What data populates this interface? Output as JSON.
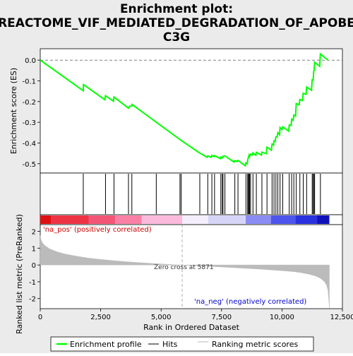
{
  "chart_data": [
    {
      "type": "line",
      "title_line1": "Enrichment plot:",
      "title_line2": "REACTOME_VIF_MEDIATED_DEGRADATION_OF_APOBE",
      "title_line3": "C3G",
      "ylabel": "Enrichment score (ES)",
      "xlim": [
        0,
        12500
      ],
      "ylim": [
        -0.545,
        0.055
      ],
      "yticks": [
        0.0,
        -0.1,
        -0.2,
        -0.3,
        -0.4,
        -0.5
      ],
      "ytick_labels": [
        "0.0",
        "-0.1",
        "-0.2",
        "-0.3",
        "-0.4",
        "-0.5"
      ],
      "series": [
        {
          "name": "Enrichment profile",
          "color": "#00ff00",
          "x": [
            0,
            1780,
            1790,
            2670,
            2700,
            3030,
            3050,
            3650,
            3700,
            3790,
            3800,
            4780,
            4800,
            5780,
            5800,
            6580,
            6600,
            6900,
            6930,
            7070,
            7100,
            7190,
            7210,
            7450,
            7470,
            7530,
            7560,
            7620,
            7640,
            8020,
            8050,
            8160,
            8180,
            8480,
            8510,
            8560,
            8580,
            8610,
            8640,
            8660,
            8700,
            8780,
            8800,
            8920,
            8940,
            9150,
            9170,
            9350,
            9380,
            9560,
            9590,
            9650,
            9670,
            9720,
            9750,
            9800,
            9830,
            9900,
            9920,
            10000,
            10030,
            10280,
            10300,
            10380,
            10400,
            10460,
            10490,
            10560,
            10590,
            10710,
            10740,
            10850,
            10880,
            11000,
            11020,
            11220,
            11250,
            11290,
            11310,
            11330,
            11350,
            11560,
            11590,
            11900
          ],
          "y": [
            0.0,
            -0.148,
            -0.118,
            -0.191,
            -0.172,
            -0.198,
            -0.178,
            -0.232,
            -0.222,
            -0.222,
            -0.214,
            -0.298,
            -0.3,
            -0.383,
            -0.385,
            -0.447,
            -0.448,
            -0.469,
            -0.462,
            -0.469,
            -0.46,
            -0.466,
            -0.461,
            -0.475,
            -0.468,
            -0.472,
            -0.464,
            -0.462,
            -0.462,
            -0.492,
            -0.485,
            -0.489,
            -0.484,
            -0.51,
            -0.496,
            -0.5,
            -0.483,
            -0.47,
            -0.458,
            -0.465,
            -0.454,
            -0.458,
            -0.447,
            -0.459,
            -0.445,
            -0.458,
            -0.444,
            -0.451,
            -0.42,
            -0.435,
            -0.405,
            -0.41,
            -0.39,
            -0.392,
            -0.37,
            -0.37,
            -0.35,
            -0.36,
            -0.325,
            -0.335,
            -0.322,
            -0.343,
            -0.313,
            -0.315,
            -0.285,
            -0.29,
            -0.265,
            -0.27,
            -0.21,
            -0.215,
            -0.19,
            -0.195,
            -0.16,
            -0.165,
            -0.13,
            -0.145,
            -0.095,
            -0.095,
            -0.055,
            -0.05,
            -0.01,
            -0.03,
            0.03,
            0.0
          ]
        }
      ]
    },
    {
      "type": "scatter",
      "name": "hits",
      "legend_label": "Hits",
      "xlim": [
        0,
        12500
      ],
      "positions": [
        1780,
        2700,
        3050,
        3650,
        3790,
        4800,
        5780,
        5830,
        6600,
        6930,
        7100,
        7210,
        7470,
        7530,
        7560,
        7640,
        8050,
        8180,
        8510,
        8580,
        8610,
        8640,
        8660,
        8700,
        8800,
        8940,
        9170,
        9380,
        9590,
        9670,
        9750,
        9830,
        9920,
        10030,
        10300,
        10400,
        10490,
        10590,
        10740,
        10880,
        11020,
        11250,
        11290,
        11330,
        11350,
        11590
      ]
    },
    {
      "type": "heatmap",
      "name": "rank-colorbar",
      "xlim": [
        0,
        12500
      ],
      "segments": [
        {
          "x0": 0,
          "x1": 450,
          "color": "#dd1111"
        },
        {
          "x0": 450,
          "x1": 2000,
          "color": "#ee3344"
        },
        {
          "x0": 2000,
          "x1": 3100,
          "color": "#f35577"
        },
        {
          "x0": 3100,
          "x1": 4200,
          "color": "#f97fa5"
        },
        {
          "x0": 4200,
          "x1": 5871,
          "color": "#fbbadb"
        },
        {
          "x0": 5871,
          "x1": 6950,
          "color": "#f3eefb"
        },
        {
          "x0": 6950,
          "x1": 8500,
          "color": "#d6d5f8"
        },
        {
          "x0": 8500,
          "x1": 9550,
          "color": "#8a8cf3"
        },
        {
          "x0": 9550,
          "x1": 10550,
          "color": "#4e55ec"
        },
        {
          "x0": 10550,
          "x1": 11450,
          "color": "#2a31df"
        },
        {
          "x0": 11450,
          "x1": 11960,
          "color": "#1111bb"
        }
      ]
    },
    {
      "type": "area",
      "name": "ranked-list-metric",
      "ylabel": "Ranked list metric (PreRanked)",
      "xlabel": "Rank in Ordered Dataset",
      "xlim": [
        0,
        12500
      ],
      "ylim": [
        -2.6,
        2.4
      ],
      "xticks": [
        0,
        2500,
        5000,
        7500,
        10000,
        12500
      ],
      "xtick_labels": [
        "0",
        "2,500",
        "5,000",
        "7,500",
        "10,000",
        "12,500"
      ],
      "yticks": [
        2,
        1,
        0,
        -1,
        -2
      ],
      "ytick_labels": [
        "2",
        "1",
        "0",
        "-1",
        "-2"
      ],
      "color": "#bbbbbb",
      "x": [
        0,
        30,
        100,
        200,
        400,
        700,
        1000,
        1500,
        2000,
        2500,
        3000,
        3500,
        4000,
        4500,
        5000,
        5500,
        5871,
        6500,
        7000,
        7500,
        8000,
        8500,
        9000,
        9500,
        10000,
        10500,
        10800,
        11100,
        11400,
        11600,
        11750,
        11850,
        11900,
        11930,
        11960
      ],
      "y": [
        1.75,
        1.5,
        1.3,
        1.15,
        0.95,
        0.78,
        0.66,
        0.52,
        0.41,
        0.33,
        0.26,
        0.2,
        0.15,
        0.1,
        0.06,
        0.02,
        0.0,
        -0.04,
        -0.08,
        -0.12,
        -0.16,
        -0.2,
        -0.24,
        -0.29,
        -0.34,
        -0.4,
        -0.46,
        -0.54,
        -0.66,
        -0.8,
        -0.98,
        -1.2,
        -1.5,
        -1.95,
        -2.55
      ],
      "zero_cross_x": 5871,
      "zero_cross_label": "Zero cross at 5871",
      "pos_label": "'na_pos' (positively correlated)",
      "neg_label": "'na_neg' (negatively correlated)",
      "pos_color": "#cc0000",
      "neg_color": "#0000cc"
    }
  ],
  "legend": {
    "items": [
      {
        "label": "Enrichment profile",
        "color": "#00ff00"
      },
      {
        "label": "Hits",
        "color": "#000000"
      },
      {
        "label": "Ranking metric scores",
        "color": "#bbbbbb"
      }
    ]
  }
}
